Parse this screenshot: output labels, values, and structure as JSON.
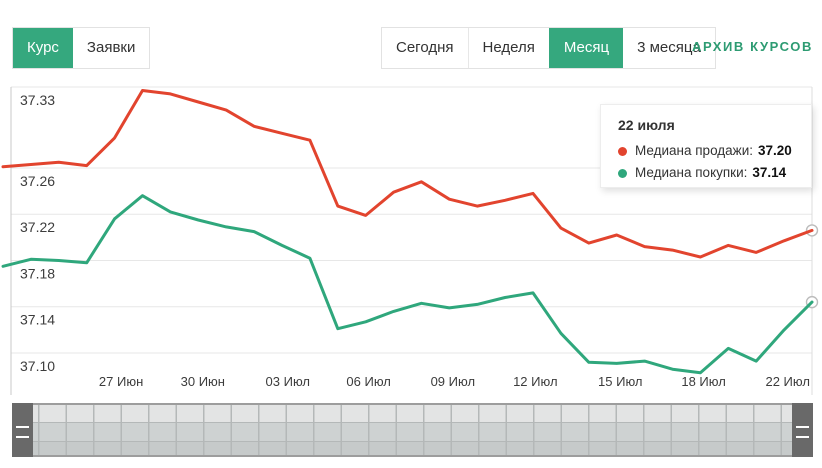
{
  "header": {
    "tabs": [
      {
        "label": "Курс",
        "active": true
      },
      {
        "label": "Заявки",
        "active": false
      }
    ],
    "periods": [
      {
        "label": "Сегодня",
        "active": false
      },
      {
        "label": "Неделя",
        "active": false
      },
      {
        "label": "Месяц",
        "active": true
      },
      {
        "label": "3 месяца",
        "active": false
      }
    ],
    "archive_label": "АРХИВ КУРСОВ"
  },
  "colors": {
    "accent_green": "#35a87e",
    "sell_red": "#e2442e",
    "buy_green": "#2fa77c",
    "gridline": "#e7e7e7",
    "axis_line": "#c9c9c9",
    "crosshair": "#dcdcdc",
    "axis_text": "#3c3c3c"
  },
  "tooltip": {
    "title": "22 июля",
    "rows": [
      {
        "label": "Медиана продажи:",
        "value": "37.20",
        "color": "#e2442e"
      },
      {
        "label": "Медиана покупки:",
        "value": "37.14",
        "color": "#2fa77c"
      }
    ]
  },
  "chart_data": {
    "type": "line",
    "ylim": [
      37.1,
      37.33
    ],
    "y_ticks": [
      37.33,
      37.26,
      37.22,
      37.18,
      37.14,
      37.1
    ],
    "x_ticks": [
      {
        "label": "27 Июн",
        "pos": 0.146
      },
      {
        "label": "30 Июн",
        "pos": 0.247
      },
      {
        "label": "03 Июл",
        "pos": 0.352
      },
      {
        "label": "06 Июл",
        "pos": 0.452
      },
      {
        "label": "09 Июл",
        "pos": 0.556
      },
      {
        "label": "12 Июл",
        "pos": 0.658
      },
      {
        "label": "15 Июл",
        "pos": 0.763
      },
      {
        "label": "18 Июл",
        "pos": 0.866
      },
      {
        "label": "22 Июл",
        "pos": 0.97
      }
    ],
    "legend_position": "tooltip-top-right",
    "grid": true,
    "series": [
      {
        "name": "Медиана продажи",
        "color": "#e2442e",
        "values": [
          37.261,
          37.263,
          37.265,
          37.262,
          37.286,
          37.327,
          37.324,
          37.317,
          37.31,
          37.296,
          37.29,
          37.284,
          37.227,
          37.219,
          37.239,
          37.248,
          37.233,
          37.227,
          37.232,
          37.238,
          37.208,
          37.195,
          37.202,
          37.192,
          37.189,
          37.183,
          37.193,
          37.187,
          37.197,
          37.206
        ]
      },
      {
        "name": "Медиана покупки",
        "color": "#2fa77c",
        "values": [
          37.175,
          37.181,
          37.18,
          37.178,
          37.216,
          37.236,
          37.222,
          37.215,
          37.209,
          37.205,
          37.193,
          37.182,
          37.121,
          37.127,
          37.136,
          37.143,
          37.139,
          37.142,
          37.148,
          37.152,
          37.117,
          37.092,
          37.091,
          37.093,
          37.086,
          37.083,
          37.104,
          37.093,
          37.12,
          37.144
        ]
      }
    ]
  }
}
